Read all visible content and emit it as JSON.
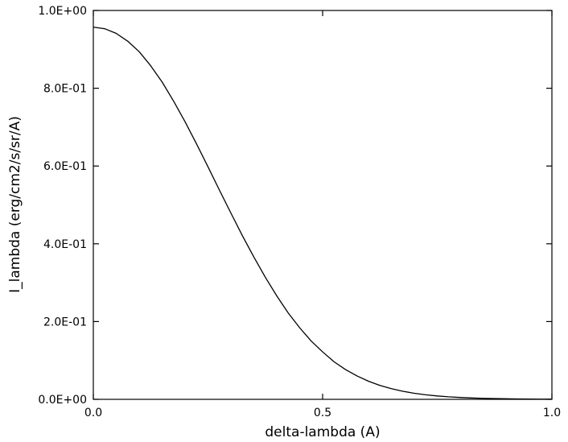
{
  "chart_data": {
    "type": "line",
    "title": "",
    "xlabel": "delta-lambda (A)",
    "ylabel": "I_lambda (erg/cm2/s/sr/A)",
    "xlim": [
      0,
      1
    ],
    "ylim": [
      0,
      1
    ],
    "grid": false,
    "x_ticks": [
      {
        "value": 0.0,
        "label": "0.0"
      },
      {
        "value": 0.5,
        "label": "0.5"
      },
      {
        "value": 1.0,
        "label": "1.0"
      }
    ],
    "y_ticks": [
      {
        "value": 0.0,
        "label": "0.0E+00"
      },
      {
        "value": 0.2,
        "label": "2.0E-01"
      },
      {
        "value": 0.4,
        "label": "4.0E-01"
      },
      {
        "value": 0.6,
        "label": "6.0E-01"
      },
      {
        "value": 0.8,
        "label": "8.0E-01"
      },
      {
        "value": 1.0,
        "label": "1.0E+00"
      }
    ],
    "series": [
      {
        "color": "#000000",
        "x": [
          0.0,
          0.025,
          0.05,
          0.075,
          0.1,
          0.125,
          0.15,
          0.175,
          0.2,
          0.225,
          0.25,
          0.275,
          0.3,
          0.325,
          0.35,
          0.375,
          0.4,
          0.425,
          0.45,
          0.475,
          0.5,
          0.525,
          0.55,
          0.575,
          0.6,
          0.625,
          0.65,
          0.675,
          0.7,
          0.725,
          0.75,
          0.775,
          0.8,
          0.825,
          0.85,
          0.875,
          0.9,
          0.925,
          0.95,
          0.975,
          1.0
        ],
        "y": [
          0.957,
          0.953,
          0.941,
          0.921,
          0.894,
          0.858,
          0.816,
          0.767,
          0.714,
          0.657,
          0.598,
          0.538,
          0.479,
          0.421,
          0.366,
          0.314,
          0.266,
          0.222,
          0.184,
          0.15,
          0.122,
          0.0965,
          0.0765,
          0.0601,
          0.0466,
          0.0358,
          0.0274,
          0.0207,
          0.0156,
          0.0117,
          0.0087,
          0.0064,
          0.0048,
          0.0035,
          0.0026,
          0.0019,
          0.0014,
          0.001,
          0.0007,
          0.0005,
          0.0004
        ]
      }
    ]
  }
}
